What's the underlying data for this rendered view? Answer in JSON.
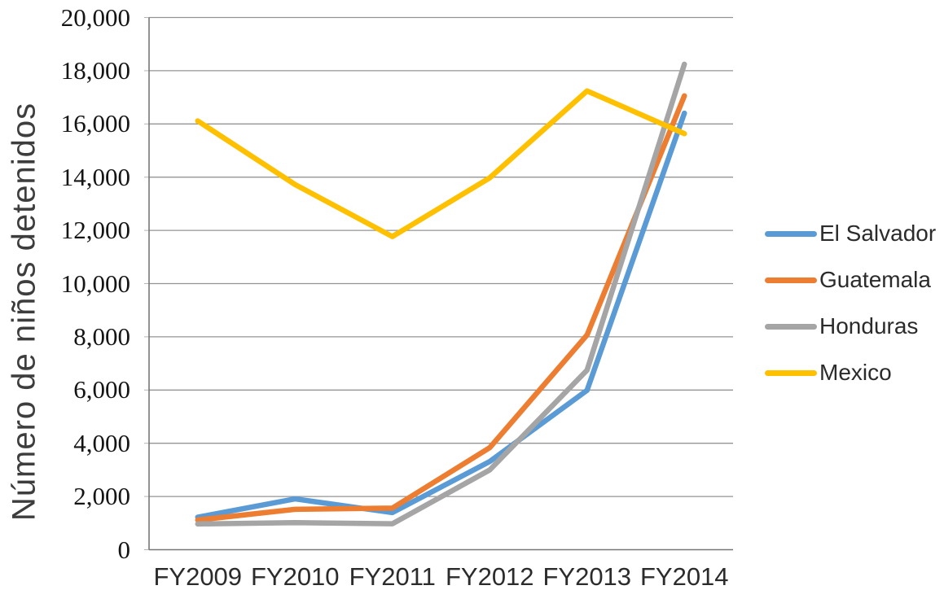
{
  "chart_data": {
    "type": "line",
    "ylabel": "Número de niños detenidos",
    "xlabel": "",
    "categories": [
      "FY2009",
      "FY2010",
      "FY2011",
      "FY2012",
      "FY2013",
      "FY2014"
    ],
    "series": [
      {
        "name": "El Salvador",
        "color": "#5B9BD5",
        "values": [
          1221,
          1910,
          1394,
          3314,
          5990,
          16404
        ]
      },
      {
        "name": "Guatemala",
        "color": "#ED7D31",
        "values": [
          1115,
          1517,
          1565,
          3835,
          8068,
          17057
        ]
      },
      {
        "name": "Honduras",
        "color": "#A5A5A5",
        "values": [
          968,
          1017,
          974,
          2997,
          6747,
          18244
        ]
      },
      {
        "name": "Mexico",
        "color": "#FFC000",
        "values": [
          16114,
          13724,
          11768,
          13974,
          17240,
          15634
        ]
      }
    ],
    "ylim": [
      0,
      20000
    ],
    "ytick_step": 2000,
    "ytick_labels": [
      "0",
      "2,000",
      "4,000",
      "6,000",
      "8,000",
      "10,000",
      "12,000",
      "14,000",
      "16,000",
      "18,000",
      "20,000"
    ],
    "grid": true,
    "legend_position": "right",
    "gridline_color": "#949494",
    "axis_color": "#767676",
    "line_width": 6.5
  }
}
